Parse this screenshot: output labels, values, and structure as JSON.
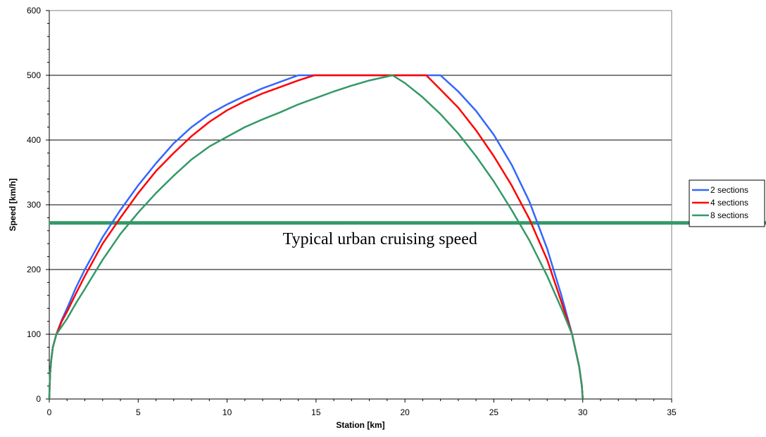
{
  "chart_data": {
    "type": "line",
    "title": "",
    "xlabel": "Station [km]",
    "ylabel": "Speed [km/h]",
    "xlim": [
      0,
      35
    ],
    "ylim": [
      0,
      600
    ],
    "xticks": [
      0,
      5,
      10,
      15,
      20,
      25,
      30,
      35
    ],
    "yticks": [
      0,
      100,
      200,
      300,
      400,
      500,
      600
    ],
    "grid": "horizontal",
    "legend_position": "right",
    "series": [
      {
        "name": "2 sections",
        "color": "#3366ff",
        "points": [
          [
            0,
            0
          ],
          [
            0.02,
            20
          ],
          [
            0.05,
            40
          ],
          [
            0.1,
            58
          ],
          [
            0.2,
            80
          ],
          [
            0.4,
            100
          ],
          [
            0.7,
            122
          ],
          [
            1.0,
            140
          ],
          [
            1.5,
            172
          ],
          [
            2.0,
            200
          ],
          [
            3.0,
            250
          ],
          [
            4.0,
            292
          ],
          [
            5.0,
            330
          ],
          [
            6.0,
            364
          ],
          [
            7.0,
            395
          ],
          [
            8.0,
            420
          ],
          [
            9.0,
            440
          ],
          [
            10.0,
            455
          ],
          [
            11.0,
            468
          ],
          [
            12.0,
            480
          ],
          [
            13.0,
            490
          ],
          [
            14.0,
            500
          ],
          [
            22.0,
            500
          ],
          [
            23.0,
            475
          ],
          [
            24.0,
            445
          ],
          [
            25.0,
            408
          ],
          [
            26.0,
            362
          ],
          [
            27.0,
            305
          ],
          [
            28.0,
            232
          ],
          [
            28.8,
            160
          ],
          [
            29.4,
            100
          ],
          [
            29.8,
            50
          ],
          [
            29.95,
            20
          ],
          [
            30.0,
            0
          ]
        ]
      },
      {
        "name": "4 sections",
        "color": "#ff0000",
        "points": [
          [
            0,
            0
          ],
          [
            0.02,
            20
          ],
          [
            0.05,
            40
          ],
          [
            0.1,
            58
          ],
          [
            0.2,
            80
          ],
          [
            0.4,
            100
          ],
          [
            0.7,
            120
          ],
          [
            1.0,
            135
          ],
          [
            1.5,
            163
          ],
          [
            2.0,
            190
          ],
          [
            3.0,
            240
          ],
          [
            4.0,
            280
          ],
          [
            5.0,
            318
          ],
          [
            6.0,
            352
          ],
          [
            7.0,
            380
          ],
          [
            8.0,
            406
          ],
          [
            9.0,
            428
          ],
          [
            10.0,
            446
          ],
          [
            11.0,
            460
          ],
          [
            12.0,
            472
          ],
          [
            13.0,
            482
          ],
          [
            14.0,
            492
          ],
          [
            14.9,
            500
          ],
          [
            21.2,
            500
          ],
          [
            22.0,
            478
          ],
          [
            23.0,
            450
          ],
          [
            24.0,
            415
          ],
          [
            25.0,
            375
          ],
          [
            26.0,
            330
          ],
          [
            27.0,
            278
          ],
          [
            28.0,
            215
          ],
          [
            28.8,
            150
          ],
          [
            29.4,
            100
          ],
          [
            29.8,
            50
          ],
          [
            29.95,
            20
          ],
          [
            30.0,
            0
          ]
        ]
      },
      {
        "name": "8 sections",
        "color": "#339966",
        "points": [
          [
            0,
            0
          ],
          [
            0.02,
            20
          ],
          [
            0.05,
            40
          ],
          [
            0.1,
            58
          ],
          [
            0.2,
            80
          ],
          [
            0.4,
            100
          ],
          [
            0.7,
            112
          ],
          [
            1.0,
            124
          ],
          [
            1.5,
            148
          ],
          [
            2.0,
            170
          ],
          [
            3.0,
            215
          ],
          [
            4.0,
            255
          ],
          [
            5.0,
            288
          ],
          [
            6.0,
            318
          ],
          [
            7.0,
            345
          ],
          [
            8.0,
            370
          ],
          [
            9.0,
            390
          ],
          [
            10.0,
            405
          ],
          [
            11.0,
            420
          ],
          [
            12.0,
            432
          ],
          [
            13.0,
            443
          ],
          [
            14.0,
            455
          ],
          [
            15.0,
            465
          ],
          [
            16.0,
            475
          ],
          [
            17.0,
            484
          ],
          [
            18.0,
            492
          ],
          [
            19.3,
            500
          ],
          [
            20.0,
            488
          ],
          [
            21.0,
            466
          ],
          [
            22.0,
            440
          ],
          [
            23.0,
            410
          ],
          [
            24.0,
            375
          ],
          [
            25.0,
            336
          ],
          [
            26.0,
            292
          ],
          [
            27.0,
            245
          ],
          [
            28.0,
            190
          ],
          [
            28.8,
            140
          ],
          [
            29.4,
            100
          ],
          [
            29.8,
            50
          ],
          [
            29.95,
            20
          ],
          [
            30.0,
            0
          ]
        ]
      }
    ],
    "reference_line": {
      "y": 272,
      "color": "#339966",
      "label": "Typical urban cruising speed"
    }
  }
}
